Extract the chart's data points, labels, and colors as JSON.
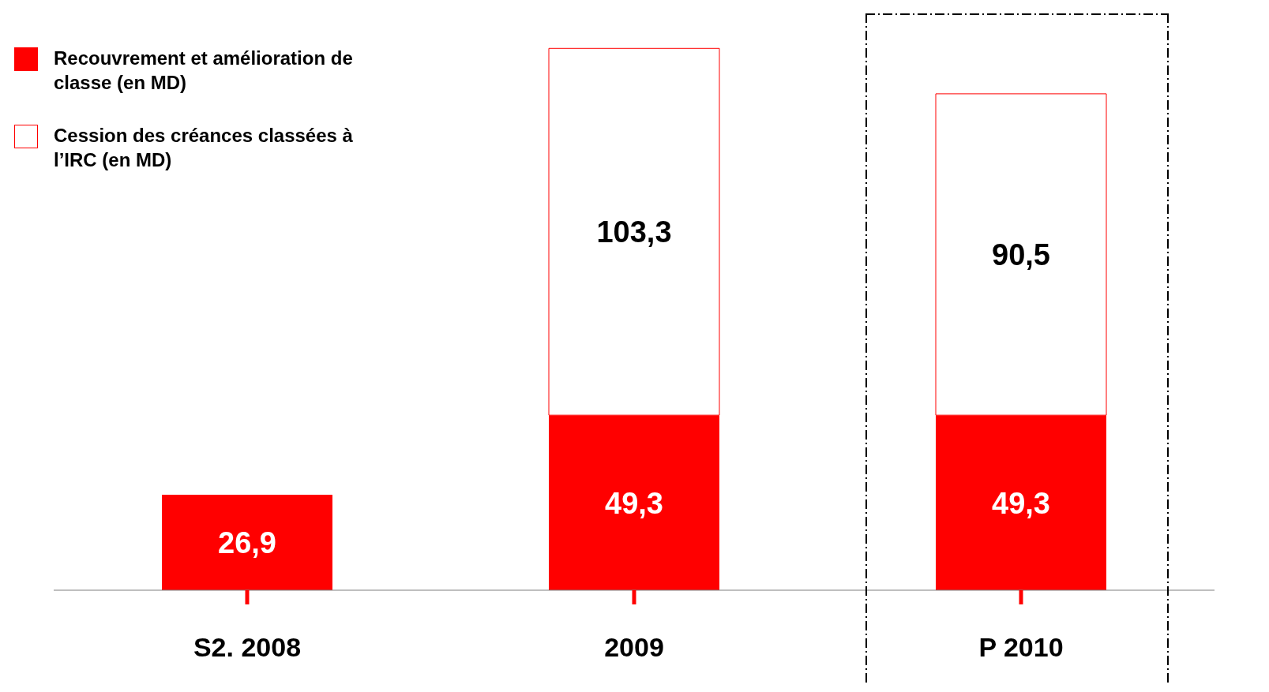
{
  "chart_data": {
    "type": "bar",
    "stacked": true,
    "categories": [
      "S2. 2008",
      "2009",
      "P 2010"
    ],
    "series": [
      {
        "name": "Recouvrement et amélioration de classe (en MD)",
        "color": "#ff0000",
        "values": [
          26.9,
          49.3,
          49.3
        ],
        "value_labels": [
          "26,9",
          "49,3",
          "49,3"
        ]
      },
      {
        "name": "Cession des créances  classées à l’IRC (en MD)",
        "color": "#ffffff",
        "values": [
          null,
          103.3,
          90.5
        ],
        "value_labels": [
          null,
          "103,3",
          "90,5"
        ]
      }
    ],
    "legend": "top left",
    "grid": false
  }
}
